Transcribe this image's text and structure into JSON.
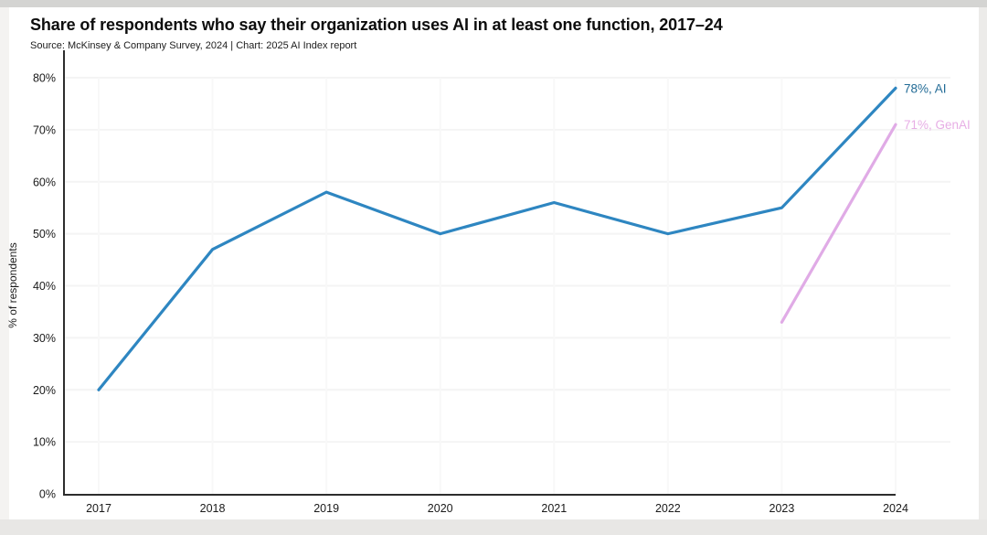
{
  "header": {
    "title": "Share of respondents who say their organization uses AI in at least one function, 2017–24",
    "source_line": "Source: McKinsey & Company Survey, 2024 | Chart: 2025 AI Index report"
  },
  "chart_data": {
    "type": "line",
    "title": "Share of respondents who say their organization uses AI in at least one function, 2017–24",
    "source": "McKinsey & Company Survey, 2024",
    "chart_credit": "2025 AI Index report",
    "xlabel": "",
    "ylabel": "% of respondents",
    "categories": [
      "2017",
      "2018",
      "2019",
      "2020",
      "2021",
      "2022",
      "2023",
      "2024"
    ],
    "ylim": [
      0,
      80
    ],
    "y_ticks": [
      "0%",
      "10%",
      "20%",
      "30%",
      "40%",
      "50%",
      "60%",
      "70%",
      "80%"
    ],
    "grid": true,
    "legend_position": "end-of-line-labels",
    "series": [
      {
        "name": "AI",
        "color": "#2e86c1",
        "label": "78%, AI",
        "label_color": "#226b96",
        "x": [
          "2017",
          "2018",
          "2019",
          "2020",
          "2021",
          "2022",
          "2023",
          "2024"
        ],
        "values": [
          20,
          47,
          58,
          50,
          56,
          50,
          55,
          78
        ]
      },
      {
        "name": "GenAI",
        "color": "#e0abe6",
        "label": "71%, GenAI",
        "label_color": "#e7aee5",
        "x": [
          "2023",
          "2024"
        ],
        "values": [
          33,
          71
        ]
      }
    ]
  },
  "colors": {
    "axis": "#2d2d2d",
    "tick_text": "#1a1a1a",
    "grid_h": "#f4f4f4",
    "grid_v": "#f8f8f8",
    "background": "#ffffff",
    "page_margin": "#e8e7e5"
  }
}
